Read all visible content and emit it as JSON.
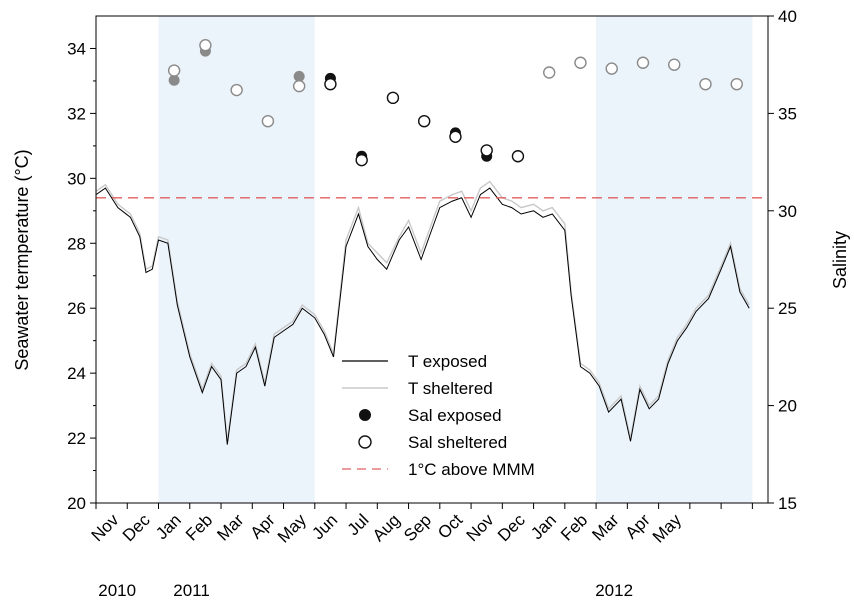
{
  "chart_data": {
    "type": "line",
    "ylabel_left": "Seawater termperature (°C)",
    "ylabel_right": "Salinity",
    "y_left_range": [
      20,
      35
    ],
    "y_left_ticks": [
      "20",
      "22",
      "24",
      "26",
      "28",
      "30",
      "32",
      "34"
    ],
    "y_right_range": [
      15,
      40
    ],
    "y_right_ticks": [
      "15",
      "20",
      "25",
      "30",
      "35",
      "40"
    ],
    "x_month_labels": [
      "Nov",
      "Dec",
      "Jan",
      "Feb",
      "Mar",
      "Apr",
      "May",
      "Jun",
      "Jul",
      "Aug",
      "Sep",
      "Oct",
      "Nov",
      "Dec",
      "Jan",
      "Feb",
      "Mar",
      "Apr",
      "May"
    ],
    "x_year_labels": [
      "2010",
      "2011",
      "2012"
    ],
    "shaded_periods": [
      [
        "Dec 2010",
        "May 2011"
      ],
      [
        "Dec 2011",
        "May 2012"
      ]
    ],
    "reference_line": {
      "name": "1°C above MMM",
      "value": 29.4,
      "color": "#e06060"
    },
    "legend": [
      "T exposed",
      "T sheltered",
      "Sal exposed",
      "Sal sheltered",
      "1°C above MMM"
    ],
    "series": [
      {
        "name": "T exposed",
        "axis": "left",
        "color": "#000000",
        "x": [
          0,
          0.3,
          0.7,
          1.1,
          1.4,
          1.6,
          1.8,
          2.0,
          2.3,
          2.6,
          3.0,
          3.4,
          3.7,
          4.0,
          4.2,
          4.5,
          4.8,
          5.1,
          5.4,
          5.7,
          6.0,
          6.3,
          6.6,
          7.0,
          7.3,
          7.6,
          8.0,
          8.4,
          8.7,
          9.0,
          9.3,
          9.7,
          10.0,
          10.4,
          10.7,
          11.0,
          11.4,
          11.7,
          12.0,
          12.3,
          12.6,
          13.0,
          13.3,
          13.6,
          14.0,
          14.3,
          14.6,
          15.0,
          15.2,
          15.5,
          15.8,
          16.1,
          16.4,
          16.8,
          17.1,
          17.4,
          17.7,
          18.0,
          18.3,
          18.6,
          18.9,
          19.2,
          19.6,
          20.0,
          20.3,
          20.6,
          20.9
        ],
        "y": [
          29.5,
          29.7,
          29.1,
          28.8,
          28.2,
          27.1,
          27.2,
          28.1,
          28.0,
          26.1,
          24.5,
          23.4,
          24.2,
          23.8,
          21.8,
          24.0,
          24.2,
          24.8,
          23.6,
          25.1,
          25.3,
          25.5,
          26.0,
          25.7,
          25.2,
          24.5,
          27.9,
          28.9,
          27.9,
          27.5,
          27.2,
          28.1,
          28.5,
          27.5,
          28.3,
          29.1,
          29.3,
          29.4,
          28.8,
          29.5,
          29.7,
          29.2,
          29.1,
          28.9,
          29.0,
          28.8,
          28.9,
          28.4,
          26.4,
          24.2,
          24.0,
          23.6,
          22.8,
          23.2,
          21.9,
          23.5,
          22.9,
          23.2,
          24.3,
          25.0,
          25.4,
          25.9,
          26.3,
          27.2,
          27.9,
          26.5,
          26.0
        ]
      },
      {
        "name": "T sheltered",
        "axis": "left",
        "color": "#c8c8c8",
        "x": [
          0,
          0.3,
          0.7,
          1.1,
          1.4,
          1.6,
          1.8,
          2.0,
          2.3,
          2.6,
          3.0,
          3.4,
          3.7,
          4.0,
          4.2,
          4.5,
          4.8,
          5.1,
          5.4,
          5.7,
          6.0,
          6.3,
          6.6,
          7.0,
          7.3,
          7.6,
          8.0,
          8.4,
          8.7,
          9.0,
          9.3,
          9.7,
          10.0,
          10.4,
          10.7,
          11.0,
          11.4,
          11.7,
          12.0,
          12.3,
          12.6,
          13.0,
          13.3,
          13.6,
          14.0,
          14.3,
          14.6,
          15.0,
          15.2,
          15.5,
          15.8,
          16.1,
          16.4,
          16.8,
          17.1,
          17.4,
          17.7,
          18.0,
          18.3,
          18.6,
          18.9,
          19.2,
          19.6,
          20.0,
          20.3,
          20.6,
          20.9
        ],
        "y": [
          29.6,
          29.8,
          29.2,
          28.9,
          28.3,
          27.2,
          27.3,
          28.2,
          28.1,
          26.2,
          24.6,
          23.5,
          24.3,
          23.9,
          21.9,
          24.1,
          24.3,
          24.9,
          23.7,
          25.2,
          25.4,
          25.6,
          26.1,
          25.8,
          25.3,
          24.6,
          28.1,
          29.1,
          28.0,
          27.7,
          27.4,
          28.2,
          28.7,
          27.7,
          28.5,
          29.3,
          29.5,
          29.6,
          29.0,
          29.7,
          29.9,
          29.4,
          29.3,
          29.1,
          29.2,
          29.0,
          29.1,
          28.6,
          26.5,
          24.3,
          24.1,
          23.7,
          22.9,
          23.3,
          22.0,
          23.6,
          23.0,
          23.3,
          24.4,
          25.1,
          25.5,
          26.0,
          26.4,
          27.3,
          28.0,
          26.6,
          26.1
        ]
      },
      {
        "name": "Sal exposed",
        "axis": "right",
        "color": "#000000",
        "x": [
          2.5,
          3.5,
          6.5,
          7.5,
          8.5,
          9.5,
          10.5,
          11.5,
          12.5
        ],
        "y": [
          36.7,
          38.2,
          36.9,
          36.8,
          32.8,
          35.8,
          34.6,
          34.0,
          32.8
        ]
      },
      {
        "name": "Sal sheltered",
        "axis": "right",
        "color": "#000000",
        "x": [
          2.5,
          3.5,
          4.5,
          5.5,
          6.5,
          7.5,
          8.5,
          9.5,
          10.5,
          11.5,
          12.5,
          13.5,
          14.5,
          15.5,
          16.5,
          17.5,
          18.5,
          19.5,
          20.5
        ],
        "y": [
          37.2,
          38.5,
          36.2,
          34.6,
          36.4,
          36.5,
          32.6,
          35.8,
          34.6,
          33.8,
          33.1,
          32.8,
          37.1,
          37.6,
          37.3,
          37.6,
          37.5,
          36.5,
          36.5
        ]
      }
    ]
  }
}
